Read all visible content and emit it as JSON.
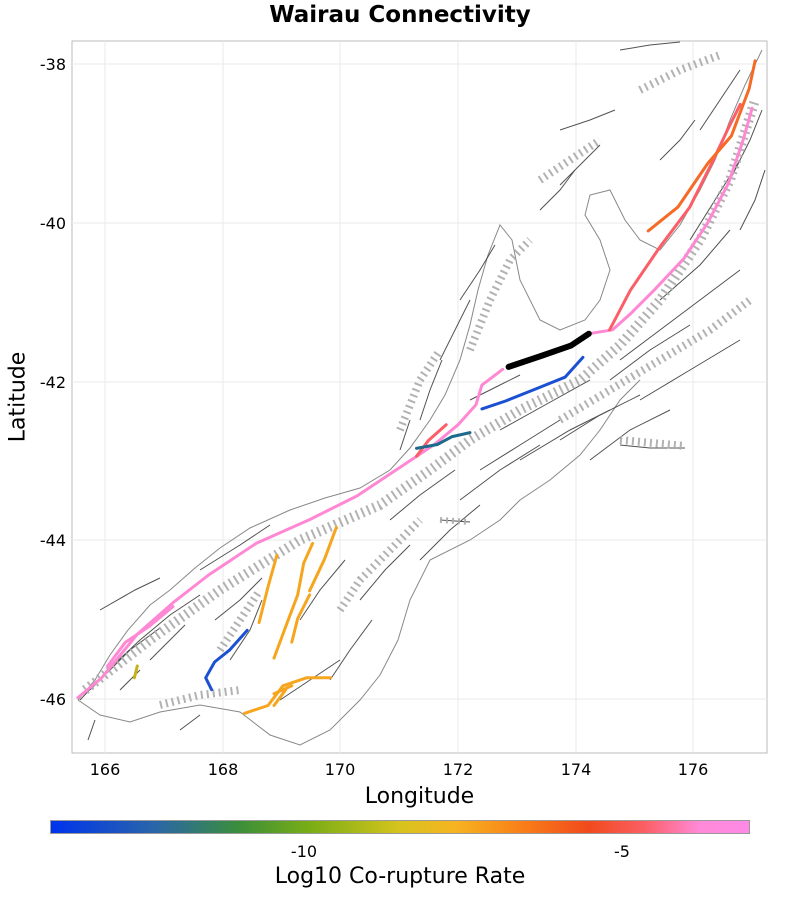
{
  "title": "Wairau Connectivity",
  "x_axis": {
    "label": "Longitude",
    "ticks": [
      "166",
      "168",
      "170",
      "172",
      "174",
      "176"
    ]
  },
  "y_axis": {
    "label": "Latitude",
    "ticks": [
      "-38",
      "-40",
      "-42",
      "-44",
      "-46"
    ]
  },
  "colorbar": {
    "label": "Log10 Co-rupture Rate",
    "ticks": [
      "-10",
      "-5"
    ]
  },
  "chart_data": {
    "type": "map",
    "xlim": [
      165.5,
      177.2
    ],
    "ylim": [
      -46.7,
      -37.7
    ],
    "legend": "colorbar-bottom",
    "grid": true,
    "colormap": "blue-green-yellow-orange-red-pink",
    "highlighted_fault": {
      "name": "Wairau",
      "color": "#000000",
      "path": [
        [
          172.85,
          -41.82
        ],
        [
          173.4,
          -41.68
        ],
        [
          173.9,
          -41.55
        ],
        [
          174.2,
          -41.4
        ]
      ]
    },
    "corupture_faults": [
      {
        "color": "#ff88d4",
        "path": [
          [
            165.6,
            -46.0
          ],
          [
            166.0,
            -45.75
          ],
          [
            166.6,
            -45.2
          ],
          [
            167.2,
            -44.8
          ],
          [
            167.8,
            -44.45
          ],
          [
            168.6,
            -44.05
          ],
          [
            169.5,
            -43.75
          ],
          [
            170.3,
            -43.45
          ],
          [
            171.0,
            -43.1
          ],
          [
            171.6,
            -42.8
          ],
          [
            172.0,
            -42.55
          ],
          [
            172.3,
            -42.3
          ],
          [
            172.4,
            -42.05
          ],
          [
            172.75,
            -41.85
          ]
        ]
      },
      {
        "color": "#ff88d4",
        "path": [
          [
            174.2,
            -41.4
          ],
          [
            174.6,
            -41.35
          ],
          [
            174.9,
            -41.15
          ],
          [
            175.3,
            -40.85
          ],
          [
            175.8,
            -40.45
          ],
          [
            176.2,
            -40.0
          ],
          [
            176.55,
            -39.5
          ],
          [
            176.8,
            -38.95
          ],
          [
            176.95,
            -38.55
          ]
        ]
      },
      {
        "color": "#ff88d4",
        "path": [
          [
            166.1,
            -45.6
          ],
          [
            166.4,
            -45.3
          ],
          [
            166.8,
            -45.1
          ],
          [
            167.2,
            -44.85
          ]
        ]
      },
      {
        "color": "#fc5e68",
        "path": [
          [
            174.55,
            -41.35
          ],
          [
            174.9,
            -40.85
          ],
          [
            175.4,
            -40.3
          ],
          [
            175.9,
            -39.8
          ],
          [
            176.3,
            -39.2
          ],
          [
            176.55,
            -38.8
          ],
          [
            176.75,
            -38.5
          ]
        ]
      },
      {
        "color": "#fc5e68",
        "path": [
          [
            171.3,
            -42.95
          ],
          [
            171.5,
            -42.75
          ],
          [
            171.8,
            -42.55
          ]
        ]
      },
      {
        "color": "#f56a25",
        "path": [
          [
            175.2,
            -40.1
          ],
          [
            175.7,
            -39.8
          ],
          [
            176.2,
            -39.25
          ],
          [
            176.6,
            -38.9
          ],
          [
            176.9,
            -38.3
          ],
          [
            177.0,
            -37.95
          ]
        ]
      },
      {
        "color": "#f6a61e",
        "path": [
          [
            168.65,
            -45.05
          ],
          [
            168.8,
            -44.6
          ],
          [
            168.95,
            -44.2
          ]
        ]
      },
      {
        "color": "#f6a61e",
        "path": [
          [
            168.9,
            -45.5
          ],
          [
            169.1,
            -45.1
          ],
          [
            169.3,
            -44.7
          ],
          [
            169.4,
            -44.3
          ],
          [
            169.55,
            -44.05
          ]
        ]
      },
      {
        "color": "#f6a61e",
        "path": [
          [
            169.5,
            -44.65
          ],
          [
            169.75,
            -44.25
          ],
          [
            169.95,
            -43.85
          ]
        ]
      },
      {
        "color": "#f6a61e",
        "path": [
          [
            169.2,
            -45.3
          ],
          [
            169.3,
            -45.0
          ],
          [
            169.5,
            -44.7
          ]
        ]
      },
      {
        "color": "#f6a61e",
        "path": [
          [
            168.4,
            -46.2
          ],
          [
            168.8,
            -46.1
          ],
          [
            169.05,
            -45.85
          ],
          [
            169.45,
            -45.75
          ],
          [
            169.85,
            -45.75
          ]
        ]
      },
      {
        "color": "#f6a61e",
        "path": [
          [
            168.9,
            -45.95
          ],
          [
            169.2,
            -45.85
          ]
        ]
      },
      {
        "color": "#f6a61e",
        "path": [
          [
            168.9,
            -46.1
          ],
          [
            169.1,
            -45.9
          ]
        ]
      },
      {
        "color": "#1b50d2",
        "path": [
          [
            172.4,
            -42.35
          ],
          [
            172.8,
            -42.25
          ],
          [
            173.3,
            -42.1
          ],
          [
            173.8,
            -41.95
          ],
          [
            174.1,
            -41.7
          ]
        ]
      },
      {
        "color": "#1b50d2",
        "path": [
          [
            167.85,
            -45.9
          ],
          [
            167.75,
            -45.75
          ],
          [
            167.9,
            -45.55
          ],
          [
            168.15,
            -45.4
          ],
          [
            168.45,
            -45.15
          ]
        ]
      },
      {
        "color": "#1e6a8c",
        "path": [
          [
            171.3,
            -42.85
          ],
          [
            171.65,
            -42.8
          ],
          [
            171.9,
            -42.7
          ],
          [
            172.2,
            -42.65
          ]
        ]
      },
      {
        "color": "#c6b21a",
        "path": [
          [
            166.55,
            -45.75
          ],
          [
            166.6,
            -45.6
          ]
        ]
      }
    ]
  }
}
